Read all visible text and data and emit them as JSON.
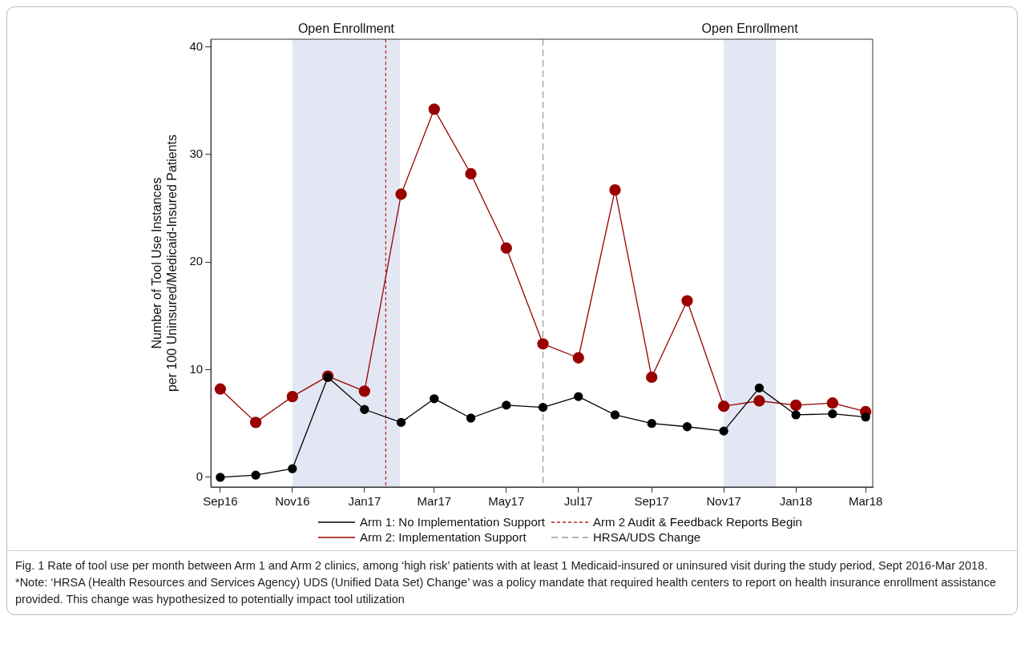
{
  "chart_data": {
    "type": "line",
    "ylabel": "Number of Tool Use Instances\nper 100 Uninsured/Medicaid-Insured Patients",
    "x": [
      "2016-09",
      "2016-10",
      "2016-11",
      "2016-12",
      "2017-01",
      "2017-02",
      "2017-03",
      "2017-04",
      "2017-05",
      "2017-06",
      "2017-07",
      "2017-08",
      "2017-09",
      "2017-10",
      "2017-11",
      "2017-12",
      "2018-01",
      "2018-02",
      "2018-03"
    ],
    "series": [
      {
        "name": "Arm 1: No Implementation Support",
        "color": "#000000",
        "values": [
          0.0,
          0.2,
          0.8,
          9.3,
          6.3,
          5.1,
          7.3,
          5.5,
          6.7,
          6.5,
          7.5,
          5.8,
          5.0,
          4.7,
          4.3,
          8.3,
          5.8,
          5.9,
          5.6
        ]
      },
      {
        "name": "Arm 2: Implementation Support",
        "color": "#990000",
        "values": [
          8.2,
          5.1,
          7.5,
          9.4,
          8.0,
          26.3,
          34.2,
          28.2,
          21.3,
          12.4,
          11.1,
          26.7,
          9.3,
          16.4,
          6.6,
          7.1,
          6.7,
          6.9,
          6.1
        ]
      }
    ],
    "xlim": [
      "2016-08-24",
      "2018-03-07"
    ],
    "xticks": [
      {
        "value": "2016-09",
        "label": "Sep16"
      },
      {
        "value": "2016-11",
        "label": "Nov16"
      },
      {
        "value": "2017-01",
        "label": "Jan17"
      },
      {
        "value": "2017-03",
        "label": "Mar17"
      },
      {
        "value": "2017-05",
        "label": "May17"
      },
      {
        "value": "2017-07",
        "label": "Jul17"
      },
      {
        "value": "2017-09",
        "label": "Sep17"
      },
      {
        "value": "2017-11",
        "label": "Nov17"
      },
      {
        "value": "2018-01",
        "label": "Jan18"
      },
      {
        "value": "2018-03",
        "label": "Mar18"
      }
    ],
    "ylim": [
      -0.9,
      40.7
    ],
    "yticks": [
      0,
      10,
      20,
      30,
      40
    ],
    "bands": [
      {
        "axis": "x",
        "from": "2016-11-01",
        "to": "2017-01-31",
        "label": "Open Enrollment",
        "color": "#e3e7f4"
      },
      {
        "axis": "x",
        "from": "2017-11-01",
        "to": "2017-12-15",
        "label": "Open Enrollment",
        "color": "#e3e7f4"
      }
    ],
    "ref_lines": [
      {
        "axis": "x",
        "value": "2017-01-19",
        "label": "Arm 2 Audit & Feedback Reports Begin",
        "color": "#b22222",
        "line_style": "dotted"
      },
      {
        "axis": "x",
        "value": "2017-06-01",
        "label": "HRSA/UDS Change",
        "color": "#999999",
        "line_style": "dashed"
      }
    ],
    "grid": false,
    "legend": "bottom",
    "marker": "circle",
    "line_style": "solid",
    "annotations": [
      "Fig. 1 Rate of tool use per month between Arm 1 and Arm 2 clinics, among ‘high risk’ patients with at least 1 Medicaid-insured or uninsured visit during the study period, Sept 2016-Mar 2018. *Note: ‘HRSA (Health Resources and Services Agency) UDS (Unified Data Set) Change’ was a policy mandate that required health centers to report on health insurance enrollment assistance provided. This change was hypothesized to potentially impact tool utilization"
    ]
  }
}
